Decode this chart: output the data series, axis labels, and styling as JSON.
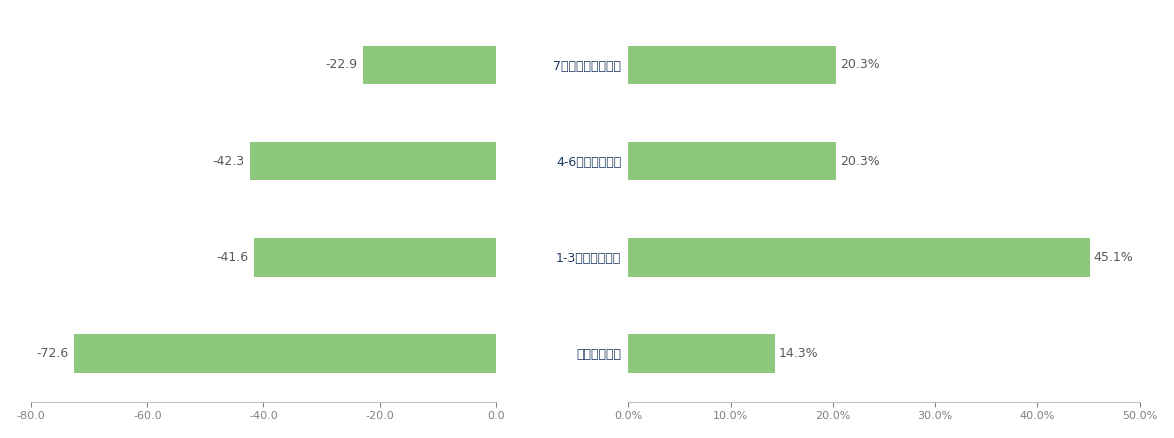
{
  "left": {
    "values": [
      -22.9,
      -42.3,
      -41.6,
      -72.6
    ],
    "value_labels": [
      "-22.9",
      "-42.3",
      "-41.6",
      "-72.6"
    ],
    "bar_color": "#8dc87c",
    "xlim": [
      -80,
      0
    ],
    "xticks": [
      -80,
      -60,
      -40,
      -20,
      0
    ]
  },
  "right": {
    "categories": [
      "7つ以上知っている",
      "4-6つ知っている",
      "1-3つ知っている",
      "全く知らない"
    ],
    "values": [
      0.203,
      0.203,
      0.451,
      0.143
    ],
    "labels": [
      "20.3%",
      "20.3%",
      "45.1%",
      "14.3%"
    ],
    "bar_color": "#8dc87c",
    "xlim": [
      0,
      0.5
    ],
    "xticks": [
      0,
      0.1,
      0.2,
      0.3,
      0.4,
      0.5
    ]
  },
  "background_color": "#ffffff",
  "bar_height": 0.4,
  "label_fontsize": 9,
  "tick_fontsize": 8,
  "category_fontsize": 9,
  "value_color": "#595959",
  "category_color": "#1f3864",
  "tick_color": "#808080"
}
